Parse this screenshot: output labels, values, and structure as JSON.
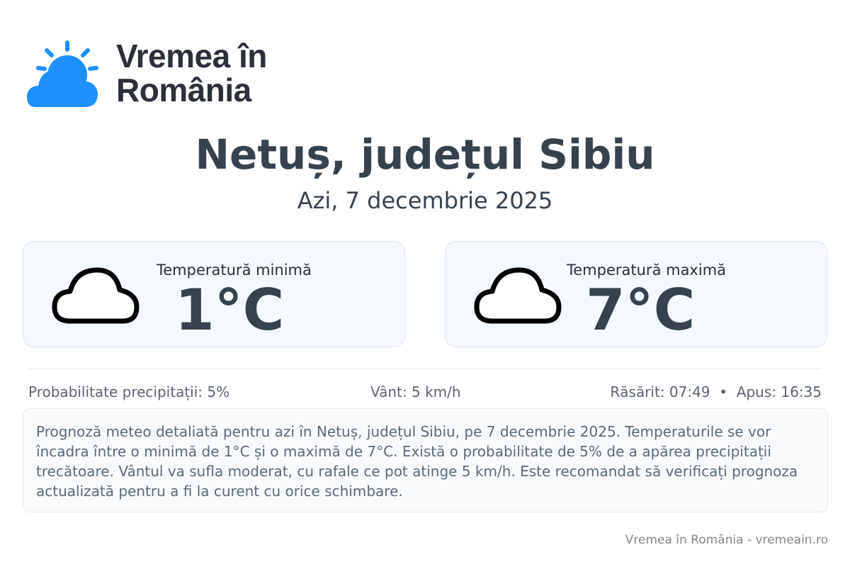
{
  "brand": {
    "name": "Vremea în România",
    "icon": "sun-cloud-icon",
    "color": "#1e90ff"
  },
  "header": {
    "title": "Netuș, județul Sibiu",
    "date": "Azi, 7 decembrie 2025"
  },
  "cards": [
    {
      "label": "Temperatură minimă",
      "value": "1°C",
      "icon": "cloud-icon"
    },
    {
      "label": "Temperatură maximă",
      "value": "7°C",
      "icon": "cloud-icon"
    }
  ],
  "info": {
    "precip": "Probabilitate precipitații: 5%",
    "wind": "Vânt: 5 km/h",
    "sun": "Răsărit: 07:49  •  Apus: 16:35"
  },
  "description": "Prognoză meteo detaliată pentru azi în Netuș, județul Sibiu, pe 7 decembrie 2025. Temperaturile se vor încadra între o minimă de 1°C și o maximă de 7°C. Există o probabilitate de 5% de a apărea precipitații trecătoare. Vântul va sufla moderat, cu rafale ce pot atinge 5 km/h. Este recomandat să verificați prognoza actualizată pentru a fi la curent cu orice schimbare.",
  "footer": "Vremea în România - vremeain.ro"
}
